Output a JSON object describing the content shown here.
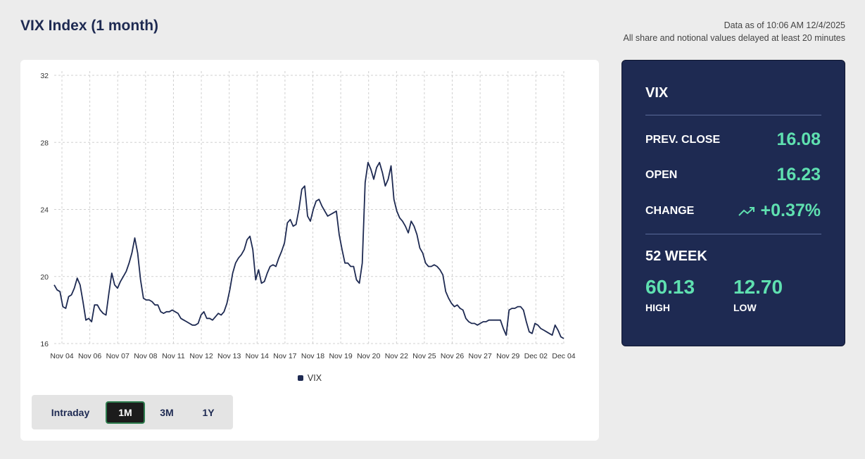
{
  "header": {
    "title": "VIX Index (1 month)",
    "data_as_of": "Data as of 10:06 AM 12/4/2025",
    "delay_note": "All share and notional values delayed at least 20 minutes"
  },
  "range_buttons": [
    {
      "label": "Intraday",
      "active": false
    },
    {
      "label": "1M",
      "active": true
    },
    {
      "label": "3M",
      "active": false
    },
    {
      "label": "1Y",
      "active": false
    }
  ],
  "stats": {
    "title": "VIX",
    "prev_close_label": "PREV. CLOSE",
    "prev_close_value": "16.08",
    "open_label": "OPEN",
    "open_value": "16.23",
    "change_label": "CHANGE",
    "change_value": "+0.37%",
    "change_icon": "trend-up-icon",
    "week52_title": "52 WEEK",
    "high_value": "60.13",
    "high_label": "HIGH",
    "low_value": "12.70",
    "low_label": "LOW",
    "accent_color": "#5fe0b0",
    "panel_color": "#1e2a52"
  },
  "chart_data": {
    "type": "line",
    "title": "",
    "xlabel": "",
    "ylabel": "",
    "ylim": [
      16,
      32
    ],
    "yticks": [
      16,
      20,
      24,
      28,
      32
    ],
    "grid": true,
    "legend_position": "bottom",
    "x_tick_labels": [
      "Nov 04",
      "Nov 06",
      "Nov 07",
      "Nov 08",
      "Nov 11",
      "Nov 12",
      "Nov 13",
      "Nov 14",
      "Nov 17",
      "Nov 18",
      "Nov 19",
      "Nov 20",
      "Nov 22",
      "Nov 25",
      "Nov 26",
      "Nov 27",
      "Nov 29",
      "Dec 02",
      "Dec 04"
    ],
    "series": [
      {
        "name": "VIX",
        "color": "#1e2a52",
        "values": [
          19.5,
          19.2,
          19.1,
          18.2,
          18.1,
          18.8,
          18.9,
          19.3,
          19.9,
          19.5,
          18.5,
          17.4,
          17.5,
          17.3,
          18.3,
          18.3,
          18.0,
          17.8,
          17.7,
          19.0,
          20.2,
          19.5,
          19.3,
          19.7,
          20.0,
          20.3,
          20.8,
          21.4,
          22.3,
          21.4,
          19.8,
          18.7,
          18.6,
          18.6,
          18.5,
          18.3,
          18.3,
          17.9,
          17.8,
          17.9,
          17.9,
          18.0,
          17.9,
          17.8,
          17.5,
          17.4,
          17.3,
          17.2,
          17.1,
          17.1,
          17.2,
          17.7,
          17.9,
          17.5,
          17.5,
          17.4,
          17.6,
          17.8,
          17.7,
          17.9,
          18.4,
          19.2,
          20.2,
          20.8,
          21.1,
          21.3,
          21.6,
          22.2,
          22.4,
          21.6,
          19.8,
          20.4,
          19.6,
          19.7,
          20.2,
          20.6,
          20.7,
          20.6,
          21.1,
          21.5,
          22.0,
          23.2,
          23.4,
          23.0,
          23.1,
          24.0,
          25.2,
          25.4,
          23.6,
          23.3,
          24.0,
          24.5,
          24.6,
          24.2,
          23.9,
          23.6,
          23.7,
          23.8,
          23.9,
          22.5,
          21.6,
          20.8,
          20.8,
          20.6,
          20.6,
          19.8,
          19.6,
          20.8,
          25.6,
          26.8,
          26.4,
          25.8,
          26.5,
          26.8,
          26.2,
          25.4,
          25.8,
          26.6,
          24.6,
          23.9,
          23.5,
          23.3,
          23.0,
          22.6,
          23.3,
          23.0,
          22.5,
          21.7,
          21.4,
          20.8,
          20.6,
          20.6,
          20.7,
          20.6,
          20.4,
          20.1,
          19.1,
          18.7,
          18.4,
          18.2,
          18.3,
          18.1,
          18.0,
          17.5,
          17.3,
          17.2,
          17.2,
          17.1,
          17.2,
          17.3,
          17.3,
          17.4,
          17.4,
          17.4,
          17.4,
          17.4,
          16.9,
          16.5,
          18.0,
          18.1,
          18.1,
          18.2,
          18.2,
          18.0,
          17.3,
          16.7,
          16.6,
          17.2,
          17.1,
          16.9,
          16.8,
          16.7,
          16.6,
          16.5,
          17.1,
          16.8,
          16.4,
          16.3
        ]
      }
    ]
  }
}
